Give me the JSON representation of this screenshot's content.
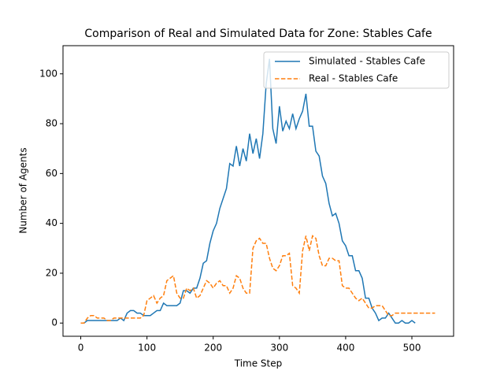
{
  "chart_data": {
    "type": "line",
    "title": "Comparison of Real and Simulated Data for Zone: Stables Cafe",
    "x_label": "Time Step",
    "y_label": "Number of Agents",
    "xlim": [
      -26.8,
      563
    ],
    "ylim": [
      -5.3,
      111.3
    ],
    "xticks": [
      0,
      100,
      200,
      300,
      400,
      500
    ],
    "yticks": [
      0,
      20,
      40,
      60,
      80,
      100
    ],
    "grid": false,
    "legend": "upper right",
    "series": [
      {
        "name": "Simulated - Stables Cafe",
        "color": "#1f77b4",
        "linestyle": "solid",
        "x": [
          0,
          5,
          10,
          15,
          20,
          25,
          30,
          35,
          40,
          45,
          50,
          55,
          60,
          65,
          70,
          75,
          80,
          85,
          90,
          95,
          100,
          105,
          110,
          115,
          120,
          125,
          130,
          135,
          140,
          145,
          150,
          155,
          160,
          165,
          170,
          175,
          180,
          185,
          190,
          195,
          200,
          205,
          210,
          215,
          220,
          225,
          230,
          235,
          240,
          245,
          250,
          255,
          260,
          265,
          270,
          275,
          280,
          285,
          290,
          295,
          300,
          305,
          310,
          315,
          320,
          325,
          330,
          335,
          340,
          345,
          350,
          355,
          360,
          365,
          370,
          375,
          380,
          385,
          390,
          395,
          400,
          405,
          410,
          415,
          420,
          425,
          430,
          435,
          440,
          445,
          450,
          455,
          460,
          465,
          470,
          475,
          480,
          485,
          490,
          495,
          500,
          505
        ],
        "values": [
          0,
          0,
          1,
          1,
          1,
          1,
          1,
          1,
          1,
          1,
          1,
          1,
          2,
          1,
          4,
          5,
          5,
          4,
          4,
          3,
          3,
          3,
          4,
          5,
          5,
          8,
          7,
          7,
          7,
          7,
          8,
          13,
          13,
          12,
          14,
          14,
          18,
          24,
          25,
          32,
          37,
          40,
          46,
          50,
          54,
          64,
          63,
          71,
          63,
          70,
          65,
          76,
          68,
          74,
          66,
          76,
          96,
          106,
          78,
          72,
          87,
          77,
          81,
          78,
          84,
          78,
          82,
          85,
          92,
          79,
          79,
          69,
          67,
          59,
          56,
          48,
          43,
          44,
          40,
          33,
          31,
          27,
          27,
          21,
          21,
          18,
          10,
          10,
          6,
          4,
          1,
          2,
          2,
          4,
          2,
          0,
          0,
          1,
          0,
          0,
          1,
          0
        ]
      },
      {
        "name": "Real - Stables Cafe",
        "color": "#ff7f0e",
        "linestyle": "dashed",
        "x": [
          0,
          5,
          10,
          15,
          20,
          25,
          30,
          35,
          40,
          45,
          50,
          55,
          60,
          65,
          70,
          75,
          80,
          85,
          90,
          95,
          100,
          105,
          110,
          115,
          120,
          125,
          130,
          135,
          140,
          145,
          150,
          155,
          160,
          165,
          170,
          175,
          180,
          185,
          190,
          195,
          200,
          205,
          210,
          215,
          220,
          225,
          230,
          235,
          240,
          245,
          250,
          255,
          260,
          265,
          270,
          275,
          280,
          285,
          290,
          295,
          300,
          305,
          310,
          315,
          320,
          325,
          330,
          335,
          340,
          345,
          350,
          355,
          360,
          365,
          370,
          375,
          380,
          385,
          390,
          395,
          400,
          405,
          410,
          415,
          420,
          425,
          430,
          435,
          440,
          445,
          450,
          455,
          460,
          465,
          470,
          475,
          480,
          485,
          490,
          495,
          500,
          505,
          510,
          515,
          520,
          525,
          530,
          535
        ],
        "values": [
          0,
          0,
          2,
          3,
          3,
          2,
          2,
          2,
          1,
          1,
          2,
          2,
          2,
          2,
          2,
          2,
          2,
          2,
          2,
          3,
          9,
          10,
          11,
          8,
          10,
          11,
          17,
          18,
          19,
          12,
          10,
          10,
          14,
          13,
          14,
          10,
          11,
          14,
          17,
          16,
          14,
          16,
          17,
          15,
          15,
          12,
          14,
          19,
          18,
          14,
          12,
          12,
          30,
          33,
          34,
          32,
          32,
          26,
          22,
          21,
          23,
          27,
          27,
          28,
          15,
          14,
          12,
          29,
          35,
          29,
          35,
          34,
          27,
          23,
          23,
          26,
          26,
          25,
          25,
          15,
          14,
          14,
          12,
          10,
          9,
          10,
          8,
          6,
          6,
          7,
          7,
          7,
          5,
          3,
          3,
          4,
          4,
          4,
          4,
          4,
          4,
          4,
          4,
          4,
          4,
          4,
          4,
          4
        ]
      }
    ]
  }
}
